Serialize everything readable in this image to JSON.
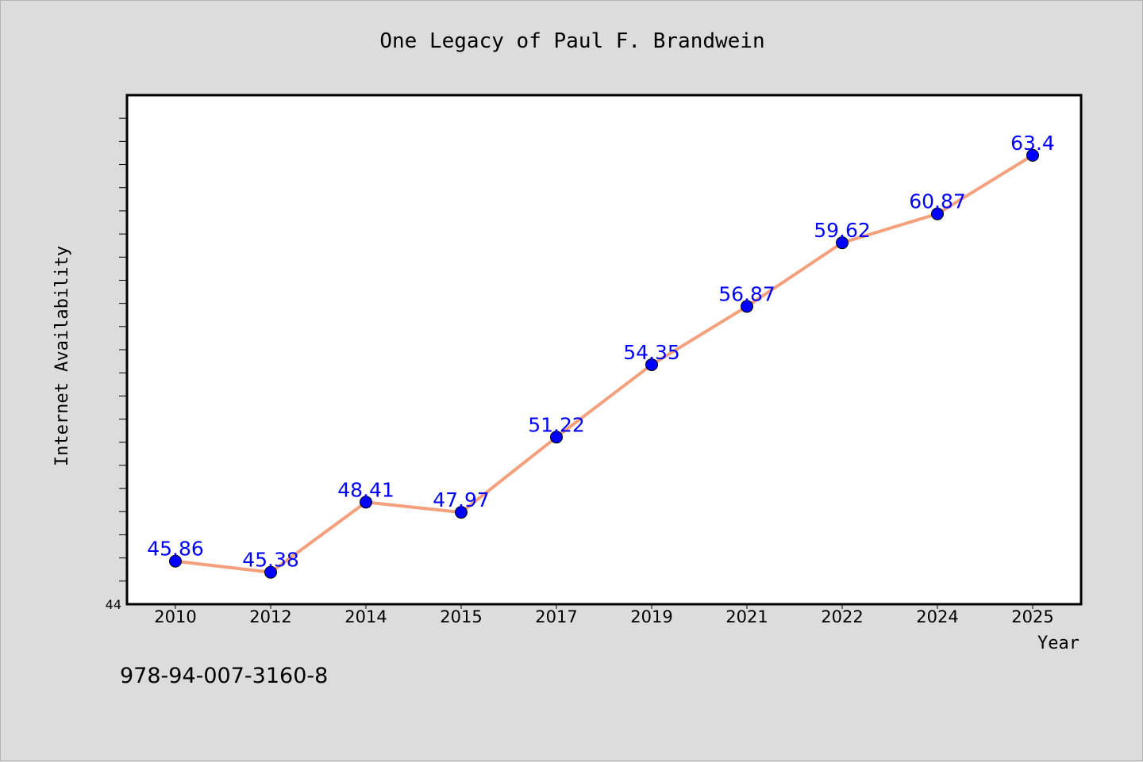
{
  "chart_data": {
    "type": "line",
    "title": "One Legacy of Paul F. Brandwein",
    "xlabel": "Year",
    "ylabel": "Internet Availability",
    "categories": [
      "2010",
      "2012",
      "2014",
      "2015",
      "2017",
      "2019",
      "2021",
      "2022",
      "2024",
      "2025"
    ],
    "series": [
      {
        "values": [
          45.86,
          45.38,
          48.41,
          47.97,
          51.22,
          54.35,
          56.87,
          59.62,
          60.87,
          63.4
        ],
        "labels": [
          "45.86",
          "45.38",
          "48.41",
          "47.97",
          "51.22",
          "54.35",
          "56.87",
          "59.62",
          "60.87",
          "63.4"
        ],
        "line_color": "#f4a07c",
        "marker_color": "#0000ff"
      }
    ],
    "ylim": [
      44,
      66
    ],
    "y_tick_labels": [
      "44"
    ],
    "grid": false,
    "legend": "none"
  },
  "footer": {
    "isbn": "978-94-007-3160-8"
  },
  "colors": {
    "background": "#dcdcdc",
    "plot_background": "#ffffff",
    "data_label": "#0000ff"
  }
}
